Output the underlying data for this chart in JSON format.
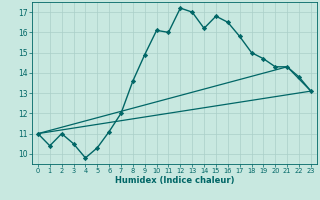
{
  "title": "",
  "xlabel": "Humidex (Indice chaleur)",
  "xlim": [
    -0.5,
    23.5
  ],
  "ylim": [
    9.5,
    17.5
  ],
  "xticks": [
    0,
    1,
    2,
    3,
    4,
    5,
    6,
    7,
    8,
    9,
    10,
    11,
    12,
    13,
    14,
    15,
    16,
    17,
    18,
    19,
    20,
    21,
    22,
    23
  ],
  "yticks": [
    10,
    11,
    12,
    13,
    14,
    15,
    16,
    17
  ],
  "bg_color": "#c8e8e0",
  "line_color": "#006666",
  "grid_color": "#aacfc8",
  "main_line": {
    "x": [
      0,
      1,
      2,
      3,
      4,
      5,
      6,
      7,
      8,
      9,
      10,
      11,
      12,
      13,
      14,
      15,
      16,
      17,
      18,
      19,
      20,
      21,
      22,
      23
    ],
    "y": [
      11.0,
      10.4,
      11.0,
      10.5,
      9.8,
      10.3,
      11.1,
      12.0,
      13.6,
      14.9,
      16.1,
      16.0,
      17.2,
      17.0,
      16.2,
      16.8,
      16.5,
      15.8,
      15.0,
      14.7,
      14.3,
      14.3,
      13.8,
      13.1
    ]
  },
  "trend_line1": {
    "x": [
      0,
      23
    ],
    "y": [
      11.0,
      13.1
    ]
  },
  "trend_line2": {
    "x": [
      0,
      21,
      23
    ],
    "y": [
      11.0,
      14.3,
      13.1
    ]
  }
}
